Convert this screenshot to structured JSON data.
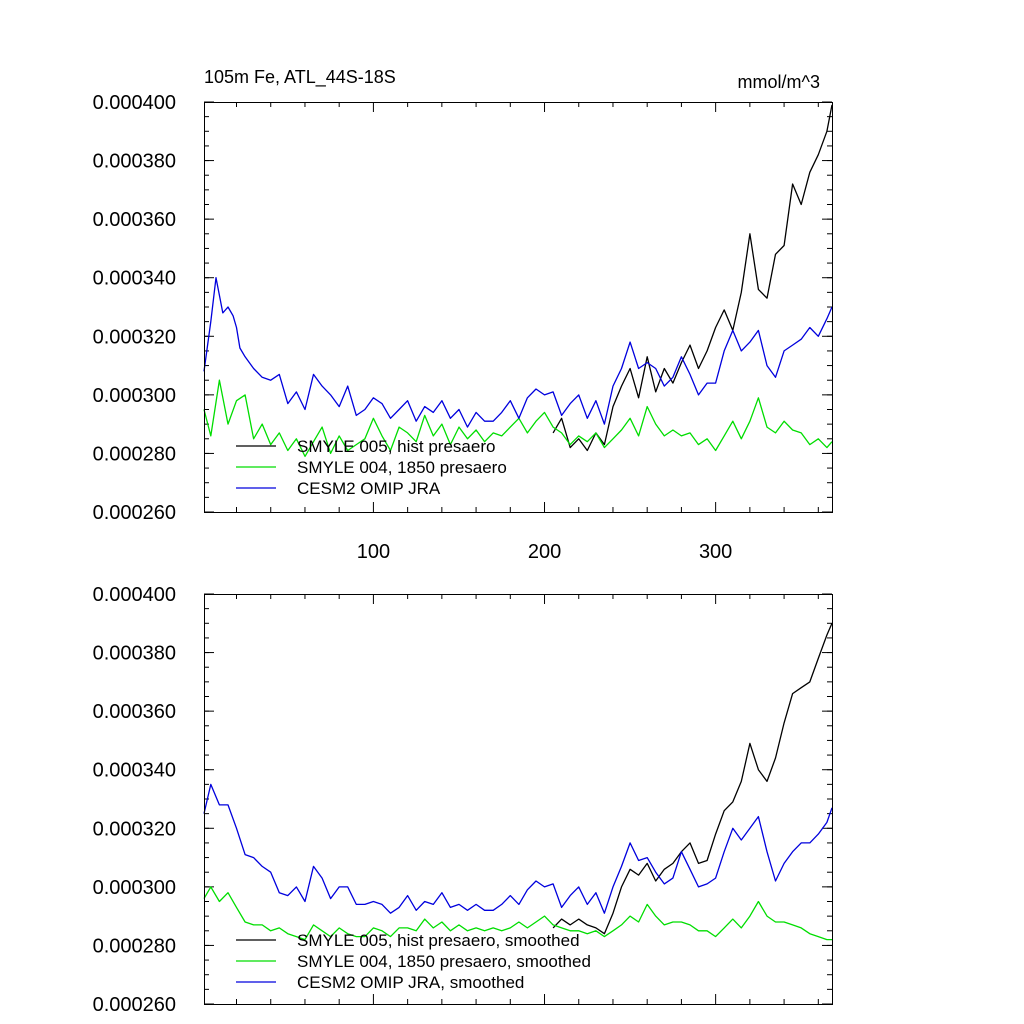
{
  "chart_data": [
    {
      "type": "line",
      "title": "105m Fe, ATL_44S-18S",
      "units_label": "mmol/m^3",
      "xlim": [
        1,
        368
      ],
      "ylim": [
        0.00026,
        0.0004
      ],
      "x_ticks": [
        100,
        200,
        300
      ],
      "x_tick_labels": [
        "100",
        "200",
        "300"
      ],
      "y_ticks": [
        0.00026,
        0.00028,
        0.0003,
        0.00032,
        0.00034,
        0.00036,
        0.00038,
        0.0004
      ],
      "y_tick_labels": [
        "0.000260",
        "0.000280",
        "0.000300",
        "0.000320",
        "0.000340",
        "0.000360",
        "0.000380",
        "0.000400"
      ],
      "legend_position": "bottom-left",
      "series": [
        {
          "name": "SMYLE 005, hist presaero",
          "color": "#000000",
          "x": [
            205,
            210,
            215,
            220,
            225,
            230,
            235,
            240,
            245,
            250,
            255,
            260,
            265,
            270,
            275,
            280,
            285,
            290,
            295,
            300,
            305,
            310,
            315,
            320,
            325,
            330,
            335,
            340,
            345,
            350,
            355,
            360,
            365,
            368
          ],
          "y": [
            0.000287,
            0.000292,
            0.000282,
            0.000285,
            0.000281,
            0.000287,
            0.000283,
            0.000296,
            0.000303,
            0.000309,
            0.000299,
            0.000313,
            0.000301,
            0.000309,
            0.000304,
            0.000311,
            0.000317,
            0.000309,
            0.000315,
            0.000323,
            0.000329,
            0.000322,
            0.000335,
            0.000355,
            0.000336,
            0.000333,
            0.000348,
            0.000351,
            0.000372,
            0.000365,
            0.000376,
            0.000382,
            0.00039,
            0.000399
          ]
        },
        {
          "name": "SMYLE 004, 1850 presaero",
          "color": "#00dd00",
          "x": [
            1,
            5,
            10,
            15,
            20,
            25,
            30,
            35,
            40,
            45,
            50,
            55,
            60,
            65,
            70,
            75,
            80,
            85,
            90,
            95,
            100,
            105,
            110,
            115,
            120,
            125,
            130,
            135,
            140,
            145,
            150,
            155,
            160,
            165,
            170,
            175,
            180,
            185,
            190,
            195,
            200,
            205,
            210,
            215,
            220,
            225,
            230,
            235,
            240,
            245,
            250,
            255,
            260,
            265,
            270,
            275,
            280,
            285,
            290,
            295,
            300,
            305,
            310,
            315,
            320,
            325,
            330,
            335,
            340,
            345,
            350,
            355,
            360,
            365,
            368
          ],
          "y": [
            0.000295,
            0.000286,
            0.000305,
            0.00029,
            0.000298,
            0.0003,
            0.000285,
            0.00029,
            0.000283,
            0.000287,
            0.000281,
            0.000285,
            0.000279,
            0.000284,
            0.000289,
            0.00028,
            0.000286,
            0.000281,
            0.000283,
            0.000285,
            0.000292,
            0.000286,
            0.000281,
            0.000289,
            0.000287,
            0.000284,
            0.000293,
            0.000286,
            0.00029,
            0.000283,
            0.000289,
            0.000285,
            0.000288,
            0.000284,
            0.000287,
            0.000286,
            0.000289,
            0.000292,
            0.000287,
            0.000291,
            0.000294,
            0.000289,
            0.000287,
            0.000283,
            0.000286,
            0.000284,
            0.000287,
            0.000282,
            0.000285,
            0.000288,
            0.000292,
            0.000286,
            0.000296,
            0.00029,
            0.000286,
            0.000288,
            0.000286,
            0.000287,
            0.000283,
            0.000285,
            0.000281,
            0.000286,
            0.000291,
            0.000285,
            0.000291,
            0.000299,
            0.000289,
            0.000287,
            0.000291,
            0.000288,
            0.000287,
            0.000283,
            0.000285,
            0.000282,
            0.000284
          ]
        },
        {
          "name": "CESM2 OMIP JRA",
          "color": "#0000dd",
          "x": [
            1,
            5,
            8,
            10,
            12,
            15,
            18,
            20,
            22,
            25,
            30,
            35,
            40,
            45,
            50,
            55,
            60,
            65,
            70,
            75,
            80,
            85,
            90,
            95,
            100,
            105,
            110,
            115,
            120,
            125,
            130,
            135,
            140,
            145,
            150,
            155,
            160,
            165,
            170,
            175,
            180,
            185,
            190,
            195,
            200,
            205,
            210,
            215,
            220,
            225,
            230,
            235,
            240,
            245,
            250,
            255,
            260,
            265,
            270,
            275,
            280,
            285,
            290,
            295,
            300,
            305,
            310,
            315,
            320,
            325,
            330,
            335,
            340,
            345,
            350,
            355,
            360,
            365,
            368
          ],
          "y": [
            0.000308,
            0.000325,
            0.00034,
            0.000334,
            0.000328,
            0.00033,
            0.000327,
            0.000323,
            0.000316,
            0.000313,
            0.000309,
            0.000306,
            0.000305,
            0.000307,
            0.000297,
            0.000301,
            0.000295,
            0.000307,
            0.000303,
            0.0003,
            0.000296,
            0.000303,
            0.000293,
            0.000295,
            0.000299,
            0.000297,
            0.000292,
            0.000295,
            0.000298,
            0.000291,
            0.000296,
            0.000294,
            0.000298,
            0.000292,
            0.000295,
            0.000289,
            0.000294,
            0.000291,
            0.000291,
            0.000294,
            0.000298,
            0.000292,
            0.000299,
            0.000302,
            0.0003,
            0.000301,
            0.000293,
            0.000297,
            0.0003,
            0.000292,
            0.000298,
            0.00029,
            0.000303,
            0.000309,
            0.000318,
            0.000309,
            0.000311,
            0.000309,
            0.000303,
            0.000306,
            0.000313,
            0.000307,
            0.0003,
            0.000304,
            0.000304,
            0.000315,
            0.000322,
            0.000315,
            0.000318,
            0.000322,
            0.00031,
            0.000306,
            0.000315,
            0.000317,
            0.000319,
            0.000323,
            0.00032,
            0.000326,
            0.00033
          ]
        }
      ]
    },
    {
      "type": "line",
      "title": "",
      "xlim": [
        1,
        368
      ],
      "ylim": [
        0.00026,
        0.0004
      ],
      "x_ticks": [
        100,
        200,
        300
      ],
      "y_ticks": [
        0.00026,
        0.00028,
        0.0003,
        0.00032,
        0.00034,
        0.00036,
        0.00038,
        0.0004
      ],
      "y_tick_labels": [
        "0.000260",
        "0.000280",
        "0.000300",
        "0.000320",
        "0.000340",
        "0.000360",
        "0.000380",
        "0.000400"
      ],
      "legend_position": "bottom-left",
      "series": [
        {
          "name": "SMYLE 005, hist presaero, smoothed",
          "color": "#000000",
          "x": [
            205,
            210,
            215,
            220,
            225,
            230,
            235,
            240,
            245,
            250,
            255,
            260,
            265,
            270,
            275,
            280,
            285,
            290,
            295,
            300,
            305,
            310,
            315,
            320,
            325,
            330,
            335,
            340,
            345,
            350,
            355,
            360,
            365,
            368
          ],
          "y": [
            0.000286,
            0.000289,
            0.000287,
            0.000289,
            0.000287,
            0.000286,
            0.000284,
            0.000291,
            0.0003,
            0.000306,
            0.000304,
            0.000308,
            0.000302,
            0.000306,
            0.000308,
            0.000312,
            0.000315,
            0.000308,
            0.000309,
            0.000318,
            0.000326,
            0.000329,
            0.000336,
            0.000349,
            0.00034,
            0.000336,
            0.000344,
            0.000356,
            0.000366,
            0.000368,
            0.00037,
            0.000378,
            0.000386,
            0.00039
          ]
        },
        {
          "name": "SMYLE 004, 1850 presaero, smoothed",
          "color": "#00dd00",
          "x": [
            1,
            5,
            10,
            15,
            20,
            25,
            30,
            35,
            40,
            45,
            50,
            55,
            60,
            65,
            70,
            75,
            80,
            85,
            90,
            95,
            100,
            105,
            110,
            115,
            120,
            125,
            130,
            135,
            140,
            145,
            150,
            155,
            160,
            165,
            170,
            175,
            180,
            185,
            190,
            195,
            200,
            205,
            210,
            215,
            220,
            225,
            230,
            235,
            240,
            245,
            250,
            255,
            260,
            265,
            270,
            275,
            280,
            285,
            290,
            295,
            300,
            305,
            310,
            315,
            320,
            325,
            330,
            335,
            340,
            345,
            350,
            355,
            360,
            365,
            368
          ],
          "y": [
            0.000296,
            0.0003,
            0.000295,
            0.000298,
            0.000293,
            0.000288,
            0.000287,
            0.000287,
            0.000285,
            0.000286,
            0.000284,
            0.000283,
            0.000282,
            0.000287,
            0.000285,
            0.000283,
            0.000286,
            0.000284,
            0.000283,
            0.000283,
            0.000286,
            0.000285,
            0.000283,
            0.000286,
            0.000286,
            0.000285,
            0.000289,
            0.000286,
            0.000288,
            0.000285,
            0.000287,
            0.000285,
            0.000286,
            0.000285,
            0.000286,
            0.000285,
            0.000286,
            0.000288,
            0.000286,
            0.000288,
            0.00029,
            0.000287,
            0.000286,
            0.000285,
            0.000285,
            0.000284,
            0.000285,
            0.000283,
            0.000285,
            0.000287,
            0.00029,
            0.000288,
            0.000294,
            0.00029,
            0.000287,
            0.000288,
            0.000288,
            0.000287,
            0.000285,
            0.000285,
            0.000283,
            0.000286,
            0.000289,
            0.000286,
            0.00029,
            0.000295,
            0.00029,
            0.000288,
            0.000288,
            0.000287,
            0.000286,
            0.000284,
            0.000283,
            0.000282,
            0.000282
          ]
        },
        {
          "name": "CESM2 OMIP JRA, smoothed",
          "color": "#0000dd",
          "x": [
            1,
            5,
            10,
            15,
            20,
            25,
            30,
            35,
            40,
            45,
            50,
            55,
            60,
            65,
            70,
            75,
            80,
            85,
            90,
            95,
            100,
            105,
            110,
            115,
            120,
            125,
            130,
            135,
            140,
            145,
            150,
            155,
            160,
            165,
            170,
            175,
            180,
            185,
            190,
            195,
            200,
            205,
            210,
            215,
            220,
            225,
            230,
            235,
            240,
            245,
            250,
            255,
            260,
            265,
            270,
            275,
            280,
            285,
            290,
            295,
            300,
            305,
            310,
            315,
            320,
            325,
            330,
            335,
            340,
            345,
            350,
            355,
            360,
            365,
            368
          ],
          "y": [
            0.000325,
            0.000335,
            0.000328,
            0.000328,
            0.00032,
            0.000311,
            0.00031,
            0.000307,
            0.000305,
            0.000298,
            0.000297,
            0.0003,
            0.000295,
            0.000307,
            0.000303,
            0.000296,
            0.0003,
            0.0003,
            0.000294,
            0.000294,
            0.000295,
            0.000294,
            0.000291,
            0.000293,
            0.000297,
            0.000292,
            0.000295,
            0.000294,
            0.000298,
            0.000293,
            0.000294,
            0.000292,
            0.000294,
            0.000292,
            0.000292,
            0.000294,
            0.000297,
            0.000294,
            0.000299,
            0.000302,
            0.0003,
            0.000301,
            0.000293,
            0.000297,
            0.0003,
            0.000294,
            0.000298,
            0.000291,
            0.0003,
            0.000307,
            0.000315,
            0.000309,
            0.00031,
            0.000305,
            0.000301,
            0.000303,
            0.000312,
            0.000306,
            0.0003,
            0.000301,
            0.000303,
            0.000312,
            0.00032,
            0.000316,
            0.00032,
            0.000324,
            0.000312,
            0.000302,
            0.000308,
            0.000312,
            0.000315,
            0.000315,
            0.000318,
            0.000322,
            0.000327
          ]
        }
      ]
    }
  ]
}
